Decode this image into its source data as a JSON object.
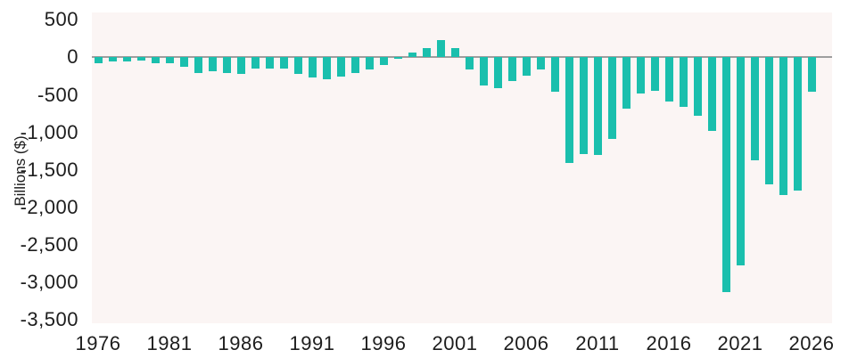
{
  "chart_data": {
    "type": "bar",
    "title": "",
    "xlabel": "",
    "ylabel": "Billions ($)",
    "categories": [
      1976,
      1977,
      1978,
      1979,
      1980,
      1981,
      1982,
      1983,
      1984,
      1985,
      1986,
      1987,
      1988,
      1989,
      1990,
      1991,
      1992,
      1993,
      1994,
      1995,
      1996,
      1997,
      1998,
      1999,
      2000,
      2001,
      2002,
      2003,
      2004,
      2005,
      2006,
      2007,
      2008,
      2009,
      2010,
      2011,
      2012,
      2013,
      2014,
      2015,
      2016,
      2017,
      2018,
      2019,
      2020,
      2021,
      2022,
      2023,
      2024,
      2025,
      2026
    ],
    "values": [
      -74,
      -54,
      -59,
      -41,
      -74,
      -79,
      -128,
      -208,
      -185,
      -212,
      -221,
      -150,
      -155,
      -153,
      -221,
      -269,
      -290,
      -255,
      -203,
      -164,
      -107,
      -22,
      69,
      126,
      236,
      128,
      -158,
      -378,
      -413,
      -318,
      -248,
      -161,
      -459,
      -1413,
      -1294,
      -1300,
      -1087,
      -680,
      -485,
      -442,
      -585,
      -665,
      -779,
      -984,
      -3132,
      -2775,
      -1375,
      -1694,
      -1833,
      -1775,
      -460
    ],
    "ylim": [
      -3550,
      600
    ],
    "y_ticks": [
      {
        "label": "500",
        "value": 500
      },
      {
        "label": "0",
        "value": 0
      },
      {
        "label": "-500",
        "value": -500
      },
      {
        "label": "-1,000",
        "value": -1000
      },
      {
        "label": "-1,500",
        "value": -1500
      },
      {
        "label": "-2,000",
        "value": -2000
      },
      {
        "label": "-2,500",
        "value": -2500
      },
      {
        "label": "-3,000",
        "value": -3000
      },
      {
        "label": "-3,500",
        "value": -3500
      }
    ],
    "x_tick_years": [
      1976,
      1981,
      1986,
      1991,
      1996,
      2001,
      2006,
      2011,
      2016,
      2021,
      2026
    ],
    "grid": "horizontal-zero-line-only",
    "legend": "none",
    "bar_color": "#1abfad",
    "plot_background": "#fbf5f4",
    "zero_line_color": "#9e9e9e",
    "text_color": "#1d1d1d"
  }
}
